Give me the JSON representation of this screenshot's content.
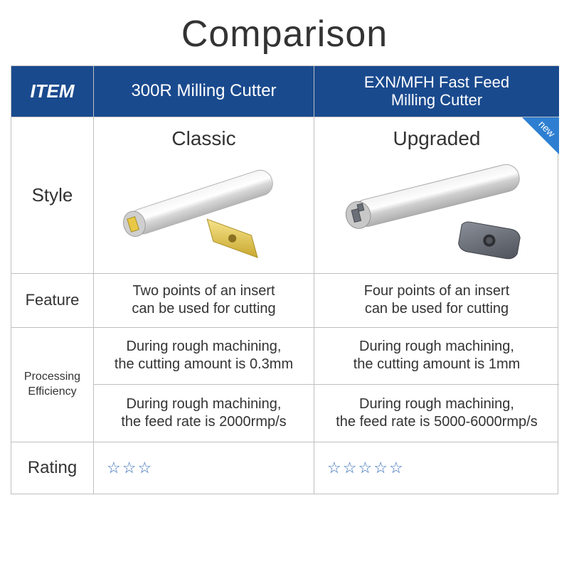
{
  "title": "Comparison",
  "columns": {
    "label": "ITEM",
    "a": "300R Milling Cutter",
    "b": "EXN/MFH Fast Feed\nMilling Cutter"
  },
  "new_badge": "new",
  "style": {
    "row_label": "Style",
    "a_label": "Classic",
    "b_label": "Upgraded",
    "a_colors": {
      "shaft": "#d8d8d8",
      "shaft_hi": "#f5f5f5",
      "insert": "#e8c846"
    },
    "b_colors": {
      "shaft": "#d0d0d0",
      "shaft_hi": "#f2f2f2",
      "insert": "#6b6f78"
    }
  },
  "feature": {
    "row_label": "Feature",
    "a": "Two points of an insert\ncan be used for cutting",
    "b": "Four points of an insert\ncan be used for cutting"
  },
  "processing": {
    "row_label": "Processing\nEfficiency",
    "r1": {
      "a": "During rough machining,\nthe cutting amount is 0.3mm",
      "b": "During rough machining,\nthe cutting amount is 1mm"
    },
    "r2": {
      "a": "During rough machining,\nthe feed rate is 2000rmp/s",
      "b": "During rough machining,\nthe feed rate is 5000-6000rmp/s"
    }
  },
  "rating": {
    "row_label": "Rating",
    "a_stars": 3,
    "b_stars": 5,
    "star_glyph": "☆",
    "star_color": "#3a6fb8"
  },
  "colors": {
    "header_bg": "#1a4a8e",
    "header_text": "#ffffff",
    "border": "#bfbfbf",
    "text": "#333333",
    "badge": "#2e7fd1"
  },
  "typography": {
    "title_fontsize": 52,
    "header_fontsize": 24,
    "row_label_fontsize": 22,
    "body_fontsize": 20,
    "style_label_fontsize": 28,
    "proc_label_fontsize": 16,
    "star_fontsize": 22
  }
}
